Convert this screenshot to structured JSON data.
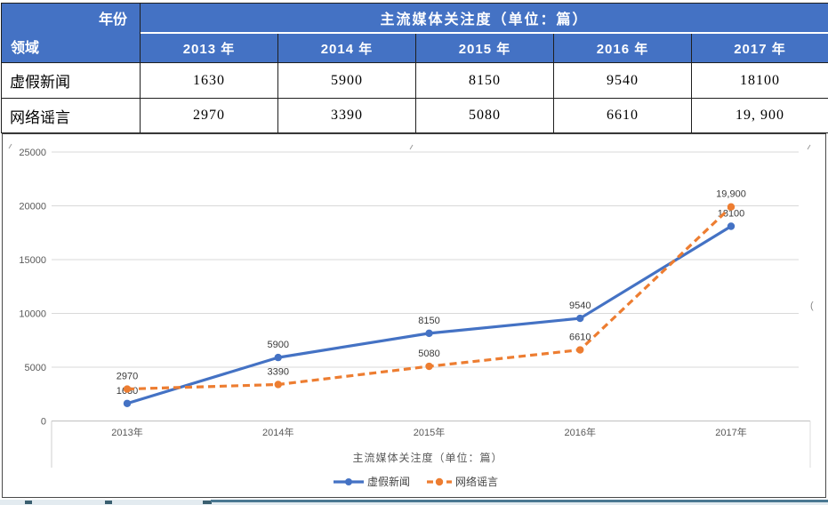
{
  "table": {
    "corner_top": "年份",
    "corner_bottom": "领域",
    "title": "主流媒体关注度（单位：篇）",
    "years": [
      "2013 年",
      "2014 年",
      "2015 年",
      "2016 年",
      "2017 年"
    ],
    "rows": [
      {
        "label": "虚假新闻",
        "values": [
          "1630",
          "5900",
          "8150",
          "9540",
          "18100"
        ]
      },
      {
        "label": "网络谣言",
        "values": [
          "2970",
          "3390",
          "5080",
          "6610",
          "19, 900"
        ]
      }
    ]
  },
  "colors": {
    "header_blue": "#4472C4",
    "series_blue": "#4472C4",
    "series_orange": "#ED7D31",
    "gridline": "#D9D9D9",
    "axis_line": "#BFBFBF",
    "axis_text": "#595959",
    "label_text": "#3a3a3a"
  },
  "chart_data": {
    "type": "line",
    "title": "主流媒体关注度（单位：篇）",
    "categories": [
      "2013年",
      "2014年",
      "2015年",
      "2016年",
      "2017年"
    ],
    "series": [
      {
        "name": "虚假新闻",
        "values": [
          1630,
          5900,
          8150,
          9540,
          18100
        ],
        "point_labels": [
          "1630",
          "5900",
          "8150",
          "9540",
          "18100"
        ],
        "color": "#4472C4",
        "style": "solid"
      },
      {
        "name": "网络谣言",
        "values": [
          2970,
          3390,
          5080,
          6610,
          19900
        ],
        "point_labels": [
          "2970",
          "3390",
          "5080",
          "6610",
          "19,900"
        ],
        "color": "#ED7D31",
        "style": "dashed"
      }
    ],
    "ylim": [
      0,
      25000
    ],
    "yticks": [
      "0",
      "5000",
      "10000",
      "15000",
      "20000",
      "25000"
    ],
    "xlabel": "",
    "ylabel": "",
    "grid": true,
    "legend_position": "bottom"
  },
  "artifacts": {
    "parenthesis": "("
  }
}
